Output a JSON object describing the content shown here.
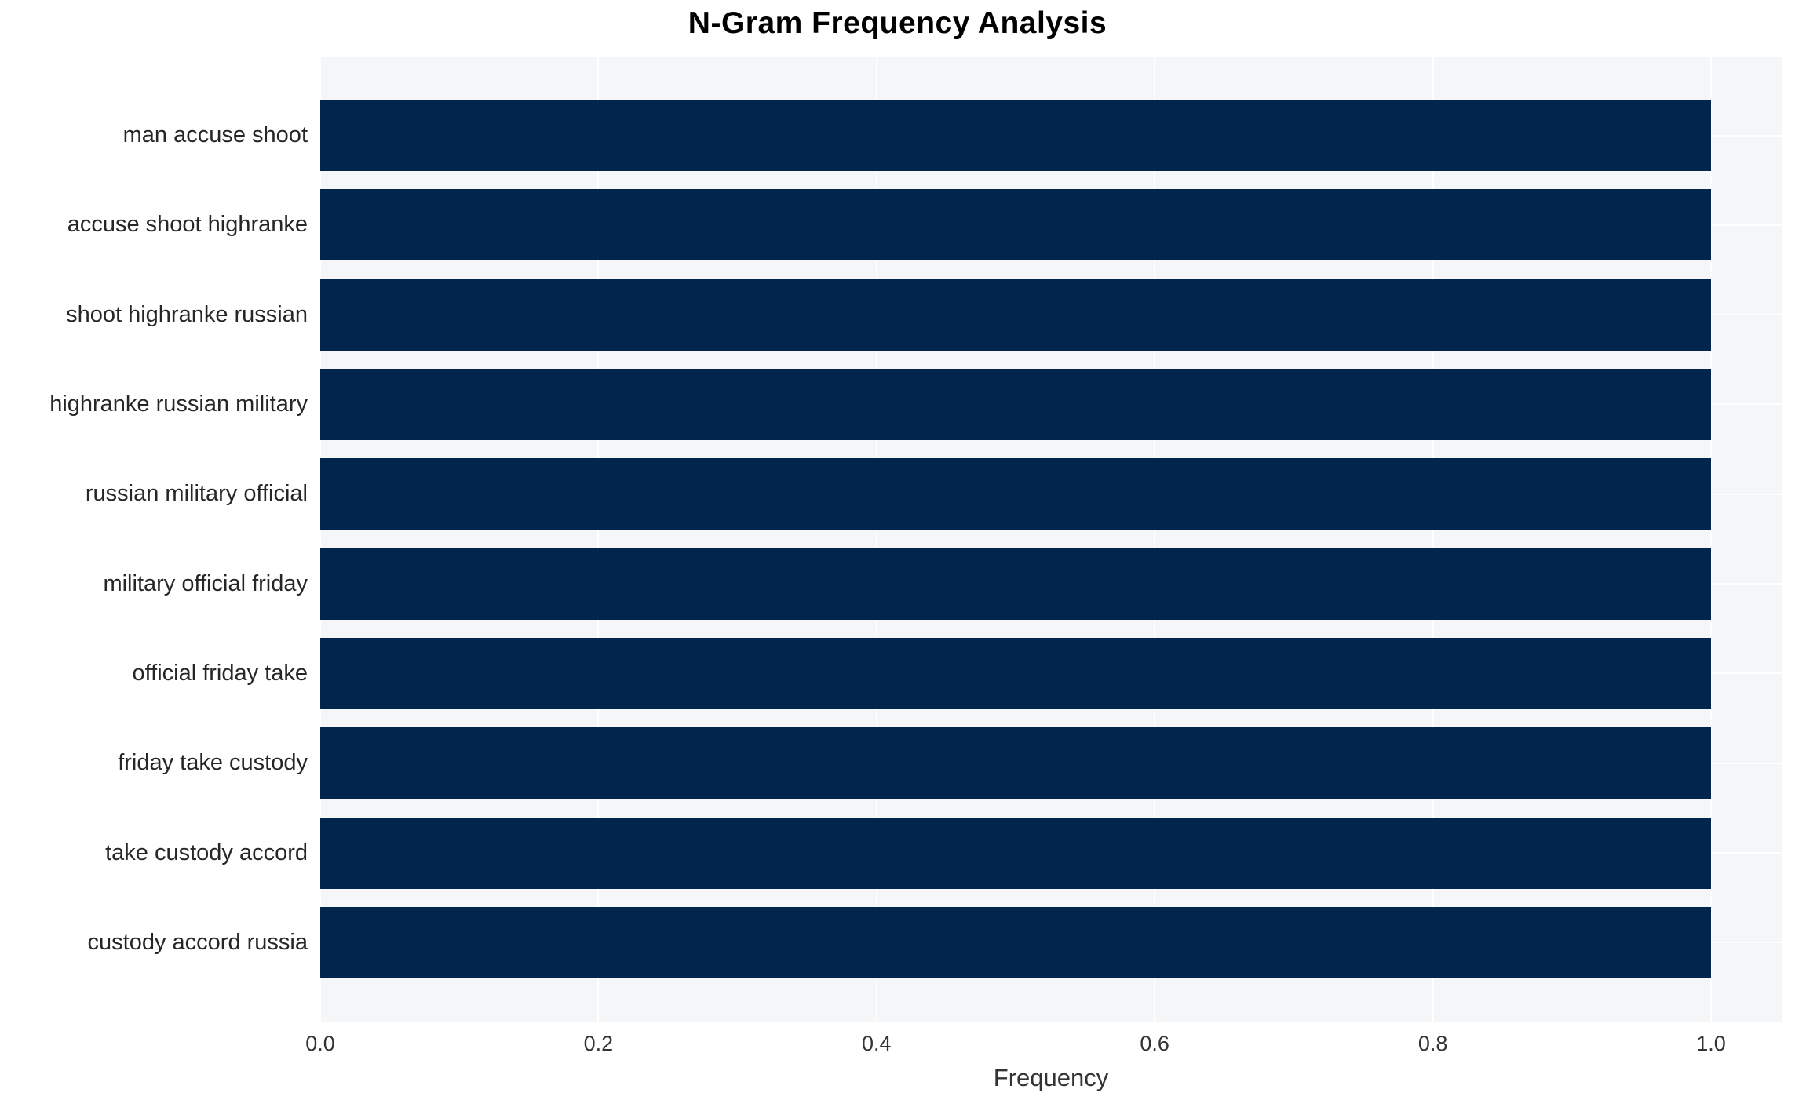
{
  "chart_data": {
    "type": "bar",
    "orientation": "horizontal",
    "title": "N-Gram Frequency Analysis",
    "xlabel": "Frequency",
    "ylabel": "",
    "categories": [
      "man accuse shoot",
      "accuse shoot highranke",
      "shoot highranke russian",
      "highranke russian military",
      "russian military official",
      "military official friday",
      "official friday take",
      "friday take custody",
      "take custody accord",
      "custody accord russia"
    ],
    "values": [
      1.0,
      1.0,
      1.0,
      1.0,
      1.0,
      1.0,
      1.0,
      1.0,
      1.0,
      1.0
    ],
    "x_ticks": [
      0.0,
      0.2,
      0.4,
      0.6,
      0.8,
      1.0
    ],
    "x_tick_labels": [
      "0.0",
      "0.2",
      "0.4",
      "0.6",
      "0.8",
      "1.0"
    ],
    "xlim": [
      0,
      1.051
    ],
    "grid": true,
    "legend": false,
    "colors": {
      "bar": "#02254e",
      "plot_background": "#f5f6f7",
      "figure_background": "#ffffff",
      "gridline": "#ffffff",
      "title_text": "#000000",
      "tick_text": "#333333",
      "axis_label_text": "#333333"
    }
  }
}
